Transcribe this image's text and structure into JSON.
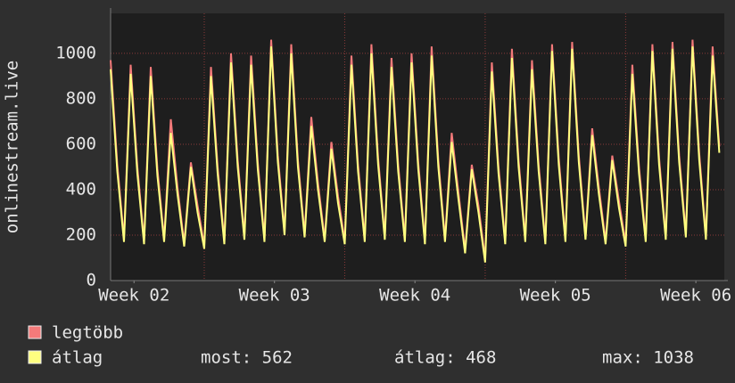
{
  "chart_data": {
    "type": "line",
    "ylabel": "onlinestream.live",
    "xlim": [
      0,
      734
    ],
    "ylim": [
      0,
      1176
    ],
    "xticks": [
      {
        "value": 28,
        "label": "Week 02"
      },
      {
        "value": 196,
        "label": "Week 03"
      },
      {
        "value": 364,
        "label": "Week 04"
      },
      {
        "value": 532,
        "label": "Week 05"
      },
      {
        "value": 700,
        "label": "Week 06"
      }
    ],
    "xgrid": [
      112,
      280,
      448,
      616
    ],
    "yticks": [
      0,
      200,
      400,
      600,
      800,
      1000
    ],
    "grid": true,
    "x": [
      0,
      8,
      16,
      24,
      32,
      40,
      48,
      56,
      64,
      72,
      80,
      88,
      96,
      104,
      112,
      120,
      128,
      136,
      144,
      152,
      160,
      168,
      176,
      184,
      192,
      200,
      208,
      216,
      224,
      232,
      240,
      248,
      256,
      264,
      272,
      280,
      288,
      296,
      304,
      312,
      320,
      328,
      336,
      344,
      352,
      360,
      368,
      376,
      384,
      392,
      400,
      408,
      416,
      424,
      432,
      440,
      448,
      456,
      464,
      472,
      480,
      488,
      496,
      504,
      512,
      520,
      528,
      536,
      544,
      552,
      560,
      568,
      576,
      584,
      592,
      600,
      608,
      616,
      624,
      632,
      640,
      648,
      656,
      664,
      672,
      680,
      688,
      696,
      704,
      712,
      720,
      728
    ],
    "series": [
      {
        "name": "legtöbb",
        "color": "#f47a7a",
        "values": [
          970,
          510,
          185,
          950,
          500,
          175,
          940,
          490,
          185,
          710,
          410,
          165,
          520,
          330,
          155,
          940,
          500,
          175,
          1000,
          530,
          195,
          990,
          520,
          185,
          1060,
          550,
          215,
          1040,
          530,
          205,
          720,
          430,
          185,
          610,
          370,
          175,
          990,
          510,
          185,
          1040,
          540,
          195,
          980,
          510,
          185,
          1000,
          520,
          175,
          1030,
          530,
          185,
          650,
          390,
          135,
          510,
          330,
          95,
          960,
          500,
          175,
          1020,
          530,
          185,
          970,
          510,
          175,
          1040,
          540,
          185,
          1050,
          550,
          195,
          670,
          410,
          175,
          550,
          350,
          165,
          950,
          500,
          185,
          1040,
          540,
          195,
          1050,
          550,
          205,
          1060,
          560,
          195,
          1030,
          590
        ]
      },
      {
        "name": "átlag",
        "color": "#ffff80",
        "values": [
          930,
          480,
          170,
          910,
          470,
          160,
          900,
          460,
          170,
          650,
          380,
          150,
          500,
          300,
          140,
          900,
          470,
          160,
          960,
          500,
          180,
          950,
          490,
          170,
          1030,
          520,
          200,
          1000,
          500,
          190,
          680,
          400,
          170,
          580,
          340,
          160,
          950,
          480,
          170,
          1000,
          510,
          180,
          940,
          480,
          170,
          960,
          490,
          160,
          990,
          500,
          170,
          610,
          360,
          120,
          490,
          300,
          80,
          920,
          470,
          160,
          980,
          500,
          170,
          930,
          480,
          160,
          1010,
          510,
          170,
          1020,
          520,
          180,
          640,
          380,
          160,
          530,
          320,
          150,
          910,
          470,
          170,
          1010,
          510,
          180,
          1020,
          520,
          190,
          1030,
          530,
          180,
          990,
          562
        ]
      }
    ],
    "stats": [
      "most: 562",
      "átlag: 468",
      "max: 1038"
    ]
  }
}
